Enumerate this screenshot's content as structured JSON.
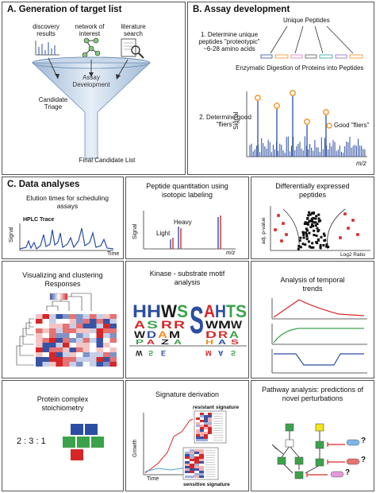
{
  "panelA": {
    "header": "A. Generation of target list",
    "icons": [
      "discovery results",
      "network of interest",
      "literature search"
    ],
    "funnel_label": "Assay Development",
    "triage": "Candidate Triage",
    "final": "Final Candidate List"
  },
  "panelB": {
    "header": "B. Assay development",
    "unique_peptides": "Unique Peptides",
    "step1": "1. Determine unique peptides \"proteotypic\" ~6-28 amino acids",
    "digestion": "Enzymatic Digestion of Proteins into Peptides",
    "step2": "2. Determine good \"fliers\"",
    "legend_good": "Good \"fliers\"",
    "ylabel": "Signal",
    "xlabel": "m/z"
  },
  "panelC": {
    "header": "C. Data analyses",
    "elution": {
      "title": "Elution times for scheduling assays",
      "trace_label": "HPLC Trace",
      "ylabel": "Signal",
      "xlabel": "Time"
    },
    "quant": {
      "title": "Peptide quantitation using isotopic labeling",
      "light": "Light",
      "heavy": "Heavy",
      "ylabel": "Signal",
      "xlabel": "m/z"
    },
    "diff": {
      "title": "Differentially expressed peptides",
      "ylabel": "adj. p-value",
      "xlabel": "Log2 Ratio"
    },
    "cluster": {
      "title": "Visualizing and clustering Responses"
    },
    "kinase": {
      "title": "Kinase - substrate motif analysis",
      "motif_top": "HHWSSAHTS"
    },
    "temporal": {
      "title": "Analysis of temporal trends"
    },
    "complex": {
      "title": "Protein complex stoichiometry",
      "ratio": "2 : 3 : 1"
    },
    "signature": {
      "title": "Signature derivation",
      "resistant": "resistant signature",
      "sensitive": "sensitive signature",
      "ylabel": "Growth",
      "xlabel": "Time"
    },
    "pathway": {
      "title": "Pathway analysis: predictions of novel perturbations",
      "q": "?"
    }
  },
  "colors": {
    "blue": "#2b4ea2",
    "red": "#d62728",
    "orange": "#f28e1c",
    "green": "#3aa34a"
  }
}
